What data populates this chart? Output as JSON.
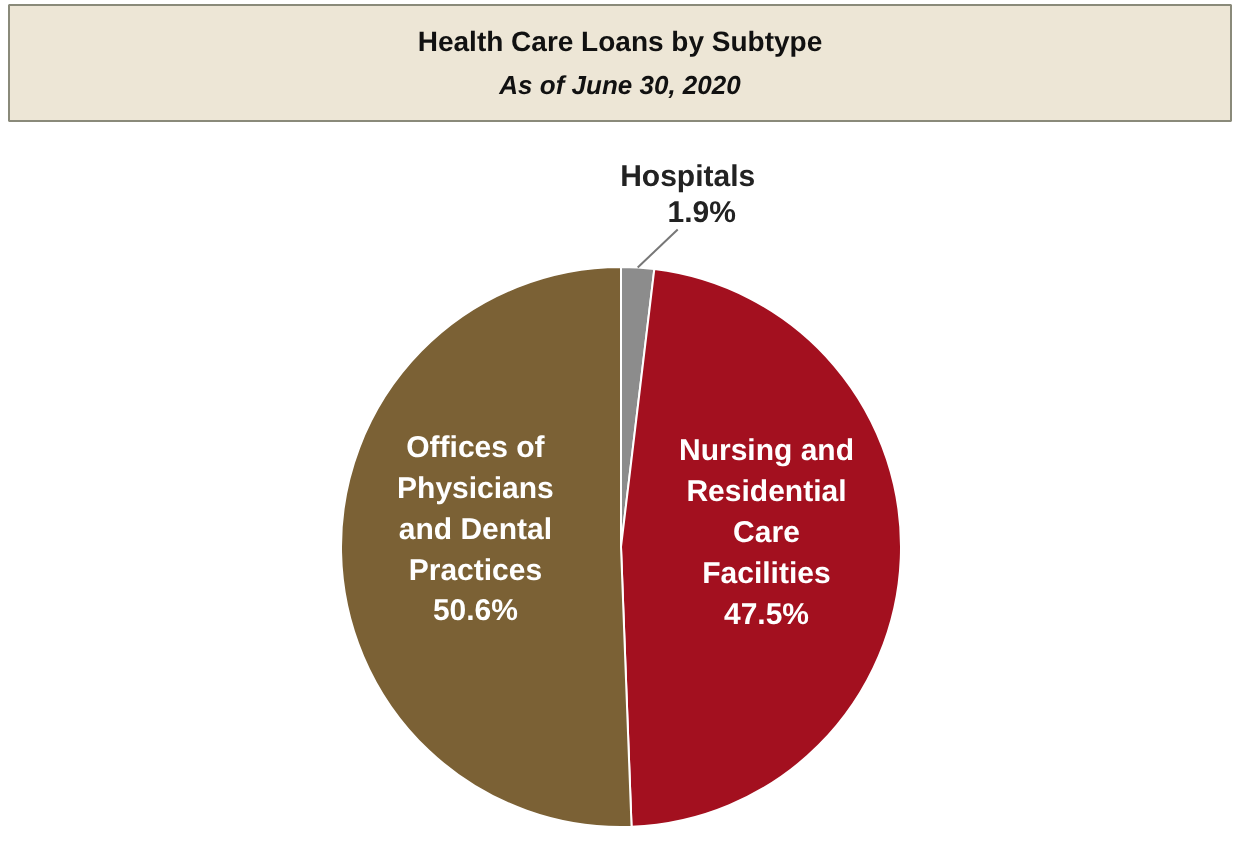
{
  "chart_data": {
    "type": "pie",
    "title": "Health Care Loans by Subtype",
    "subtitle": "As of June 30, 2020",
    "categories": [
      "Hospitals",
      "Nursing and Residential Care Facilities",
      "Offices of Physicians and Dental Practices"
    ],
    "values": [
      1.9,
      47.5,
      50.6
    ],
    "value_labels": [
      "1.9%",
      "47.5%",
      "50.6%"
    ],
    "colors": [
      "#8c8c8c",
      "#a3101f",
      "#7b6135"
    ]
  }
}
